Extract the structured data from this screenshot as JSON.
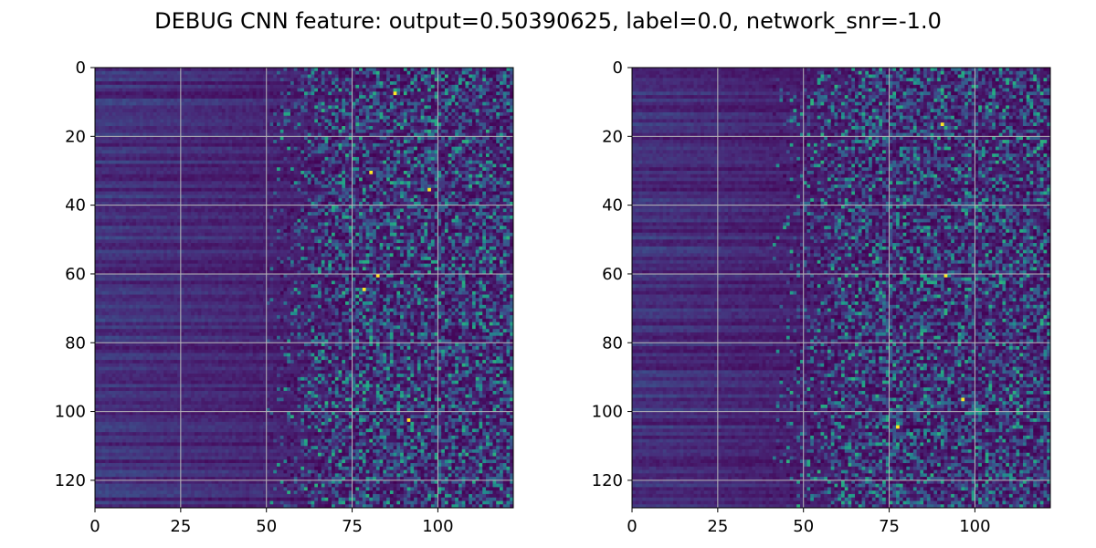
{
  "title": "DEBUG CNN feature: output=0.50390625, label=0.0, network_snr=-1.0",
  "chart_data": [
    {
      "type": "heatmap",
      "colormap": "viridis",
      "rows": 128,
      "cols": 122,
      "xlim": [
        0,
        122
      ],
      "ylim": [
        128,
        0
      ],
      "xticks": [
        0,
        25,
        50,
        75,
        100
      ],
      "yticks": [
        0,
        20,
        40,
        60,
        80,
        100,
        120
      ],
      "grid": true,
      "value_range": [
        0,
        1
      ],
      "noise_onset_col": 60,
      "bright_pixels": [
        [
          7,
          87
        ],
        [
          35,
          97
        ],
        [
          60,
          82
        ],
        [
          64,
          78
        ],
        [
          102,
          91
        ],
        [
          30,
          80
        ]
      ],
      "seed": 7
    },
    {
      "type": "heatmap",
      "colormap": "viridis",
      "rows": 128,
      "cols": 122,
      "xlim": [
        0,
        122
      ],
      "ylim": [
        128,
        0
      ],
      "xticks": [
        0,
        25,
        50,
        75,
        100
      ],
      "yticks": [
        0,
        20,
        40,
        60,
        80,
        100,
        120
      ],
      "grid": true,
      "value_range": [
        0,
        1
      ],
      "noise_onset_col": 52,
      "bright_pixels": [
        [
          96,
          96
        ],
        [
          16,
          90
        ],
        [
          104,
          77
        ],
        [
          60,
          91
        ]
      ],
      "seed": 21
    }
  ]
}
